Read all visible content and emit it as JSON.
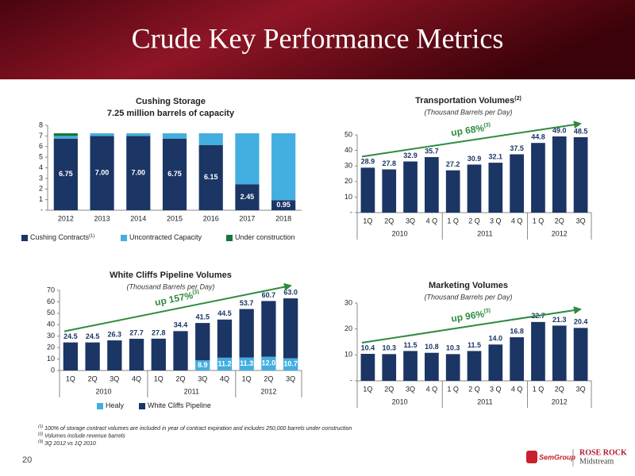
{
  "title": "Crude Key Performance Metrics",
  "page_number": "20",
  "logos": {
    "semgroup": "SemGroup",
    "rose_rock": "ROSE ROCK",
    "midstream": "Midstream"
  },
  "footnotes": [
    {
      "marker": "(1)",
      "text": "100% of storage contract volumes are included in year of contract expiration and includes 250,000 barrels under construction"
    },
    {
      "marker": "(2)",
      "text": "Volumes include revenue barrels"
    },
    {
      "marker": "(3)",
      "text": "3Q 2012 vs 1Q 2010"
    }
  ],
  "chart_data": [
    {
      "type": "stacked_bar",
      "title": "Cushing Storage",
      "subtitle": "7.25 million barrels of capacity",
      "categories": [
        "2012",
        "2013",
        "2014",
        "2015",
        "2016",
        "2017",
        "2018"
      ],
      "series": [
        {
          "name": "Cushing Contracts",
          "note": "(1)",
          "color": "#1b3565",
          "values": [
            6.75,
            7.0,
            7.0,
            6.75,
            6.15,
            2.45,
            0.95
          ],
          "value_labels": [
            "6.75",
            "7.00",
            "7.00",
            "6.75",
            "6.15",
            "2.45",
            "0.95"
          ]
        },
        {
          "name": "Uncontracted Capacity",
          "color": "#43aee0",
          "values": [
            0.25,
            0.25,
            0.25,
            0.5,
            1.1,
            4.8,
            6.3
          ]
        },
        {
          "name": "Under construction",
          "color": "#17743a",
          "values": [
            0.25,
            0,
            0,
            0,
            0,
            0,
            0
          ]
        }
      ],
      "ylim": [
        0,
        8
      ],
      "yticks": [
        {
          "value": 0,
          "label": "-"
        },
        1,
        2,
        3,
        4,
        5,
        6,
        7,
        8
      ],
      "legend": "bottom"
    },
    {
      "type": "bar",
      "title": "Transportation Volumes",
      "title_note": "(2)",
      "subtitle": "(Thousand Barrels per Day)",
      "groups": [
        {
          "label": "2010",
          "categories": [
            "1Q",
            "2Q",
            "3Q",
            "4 Q"
          ]
        },
        {
          "label": "2011",
          "categories": [
            "1 Q",
            "2 Q",
            "3 Q",
            "4 Q"
          ]
        },
        {
          "label": "2012",
          "categories": [
            "1 Q",
            "2Q",
            "3Q"
          ]
        }
      ],
      "color": "#1b3565",
      "values": [
        28.9,
        27.8,
        32.9,
        35.7,
        27.2,
        30.9,
        32.1,
        37.5,
        44.8,
        49.0,
        48.5
      ],
      "value_labels": [
        "28.9",
        "27.8",
        "32.9",
        "35.7",
        "27.2",
        "30.9",
        "32.1",
        "37.5",
        "44.8",
        "49.0",
        "48.5"
      ],
      "annotation": {
        "text": "up 68%",
        "note": "(3)",
        "color": "#2e8b3e"
      },
      "ylim": [
        0,
        50
      ],
      "yticks": [
        {
          "value": 0,
          "label": "-"
        },
        10,
        20,
        30,
        40,
        50
      ]
    },
    {
      "type": "stacked_bar",
      "title": "White Cliffs Pipeline Volumes",
      "subtitle": "(Thousand Barrels per Day)",
      "groups": [
        {
          "label": "2010",
          "categories": [
            "1Q",
            "2Q",
            "3Q",
            "4Q"
          ]
        },
        {
          "label": "2011",
          "categories": [
            "1Q",
            "2Q",
            "3Q",
            "4Q"
          ]
        },
        {
          "label": "2012",
          "categories": [
            "1Q",
            "2Q",
            "3Q"
          ]
        }
      ],
      "series": [
        {
          "name": "Healy",
          "color": "#43aee0",
          "values": [
            null,
            null,
            null,
            null,
            null,
            null,
            8.9,
            11.2,
            11.3,
            12.0,
            10.7
          ],
          "value_labels": [
            null,
            null,
            null,
            null,
            null,
            null,
            "8.9",
            "11.2",
            "11.3",
            "12.0",
            "10.7"
          ]
        },
        {
          "name": "White Cliffs Pipeline",
          "color": "#1b3565",
          "values": [
            24.5,
            24.5,
            26.3,
            27.7,
            27.8,
            34.4,
            32.6,
            33.3,
            42.4,
            48.7,
            52.3
          ]
        }
      ],
      "totals": [
        24.5,
        24.5,
        26.3,
        27.7,
        27.8,
        34.4,
        41.5,
        44.5,
        53.7,
        60.7,
        63.0
      ],
      "total_labels": [
        "24.5",
        "24.5",
        "26.3",
        "27.7",
        "27.8",
        "34.4",
        "41.5",
        "44.5",
        "53.7",
        "60.7",
        "63.0"
      ],
      "annotation": {
        "text": "up 157%",
        "note": "(3)",
        "color": "#2e8b3e"
      },
      "ylim": [
        0,
        70
      ],
      "yticks": [
        0,
        10,
        20,
        30,
        40,
        50,
        60,
        70
      ],
      "legend": "bottom"
    },
    {
      "type": "bar",
      "title": "Marketing Volumes",
      "subtitle": "(Thousand Barrels per Day)",
      "groups": [
        {
          "label": "2010",
          "categories": [
            "1Q",
            "2Q",
            "3Q",
            "4 Q"
          ]
        },
        {
          "label": "2011",
          "categories": [
            "1 Q",
            "2 Q",
            "3 Q",
            "4 Q"
          ]
        },
        {
          "label": "2012",
          "categories": [
            "1 Q",
            "2Q",
            "3Q"
          ]
        }
      ],
      "color": "#1b3565",
      "values": [
        10.4,
        10.3,
        11.5,
        10.8,
        10.3,
        11.5,
        14.0,
        16.8,
        22.7,
        21.3,
        20.4
      ],
      "value_labels": [
        "10.4",
        "10.3",
        "11.5",
        "10.8",
        "10.3",
        "11.5",
        "14.0",
        "16.8",
        "22.7",
        "21.3",
        "20.4"
      ],
      "annotation": {
        "text": "up 96%",
        "note": "(3)",
        "color": "#2e8b3e"
      },
      "ylim": [
        0,
        30
      ],
      "yticks": [
        {
          "value": 0,
          "label": "-"
        },
        10,
        20,
        30
      ]
    }
  ]
}
